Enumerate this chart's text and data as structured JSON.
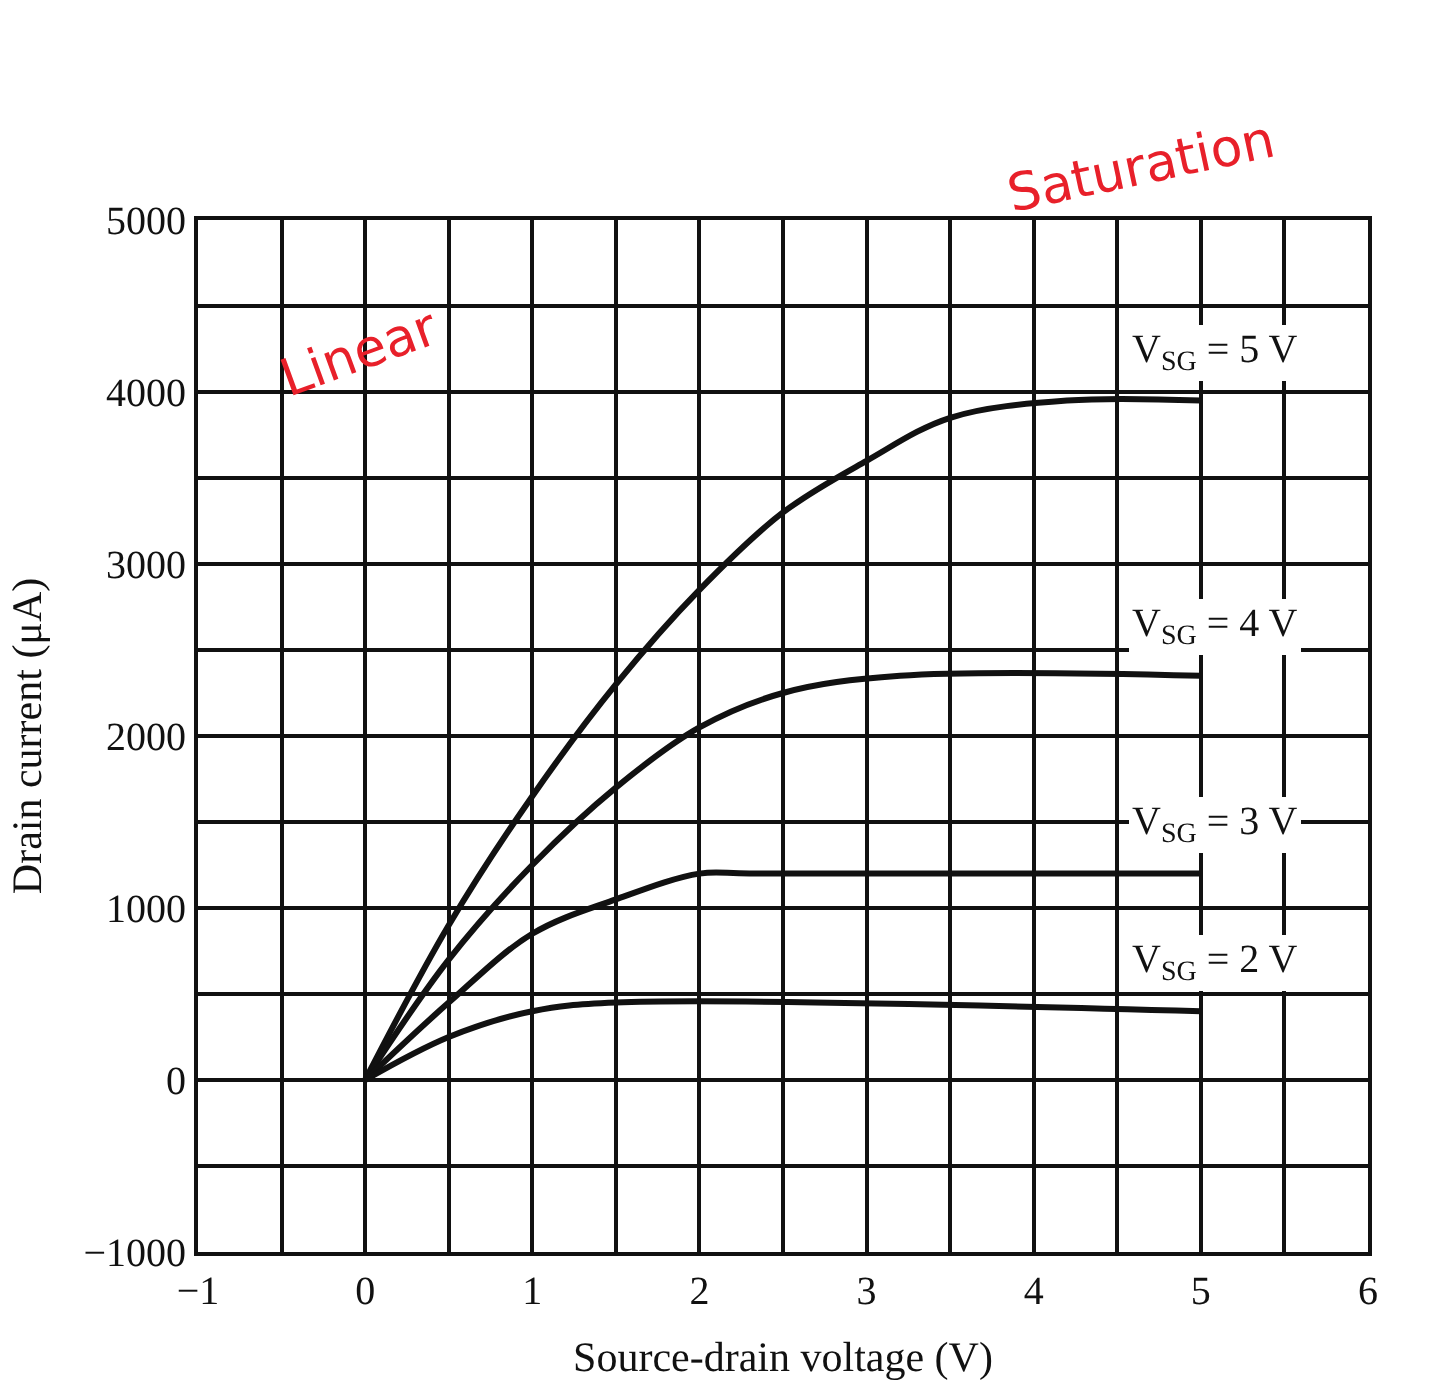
{
  "chart_data": {
    "type": "line",
    "xlabel": "Source-drain voltage (V)",
    "ylabel": "Drain current (μA)",
    "xlim": [
      -1,
      6
    ],
    "xticks": [
      {
        "value": -1,
        "label": "−1"
      },
      0,
      1,
      2,
      3,
      4,
      5,
      6
    ],
    "ylim": [
      -1000,
      5000
    ],
    "yticks": [
      {
        "value": -1000,
        "label": "−1000"
      },
      0,
      1000,
      2000,
      3000,
      4000,
      5000
    ],
    "grid": true,
    "legend": false,
    "marker": "none",
    "line_style": "solid",
    "annotations": [
      "Linear",
      "Saturation"
    ],
    "series": [
      {
        "name": "V$_{SG}$ = 5 V",
        "color": "#111111",
        "x": [
          0,
          0.5,
          1,
          1.5,
          2,
          2.5,
          3,
          3.5,
          4.2,
          5
        ],
        "values": [
          0,
          900,
          1650,
          2300,
          2850,
          3300,
          3600,
          3850,
          3950,
          3950
        ]
      },
      {
        "name": "V$_{SG}$ = 4 V",
        "color": "#111111",
        "x": [
          0,
          0.5,
          1,
          1.5,
          2,
          2.5,
          3.2,
          5
        ],
        "values": [
          0,
          700,
          1250,
          1700,
          2050,
          2250,
          2350,
          2350
        ]
      },
      {
        "name": "V$_{SG}$ = 3 V",
        "color": "#111111",
        "x": [
          0,
          0.5,
          1,
          1.5,
          2,
          2.3,
          5
        ],
        "values": [
          0,
          450,
          850,
          1050,
          1200,
          1200,
          1200
        ]
      },
      {
        "name": "V$_{SG}$ = 2 V",
        "color": "#111111",
        "x": [
          0,
          0.5,
          1,
          1.5,
          5
        ],
        "values": [
          0,
          250,
          400,
          450,
          400
        ]
      }
    ]
  }
}
